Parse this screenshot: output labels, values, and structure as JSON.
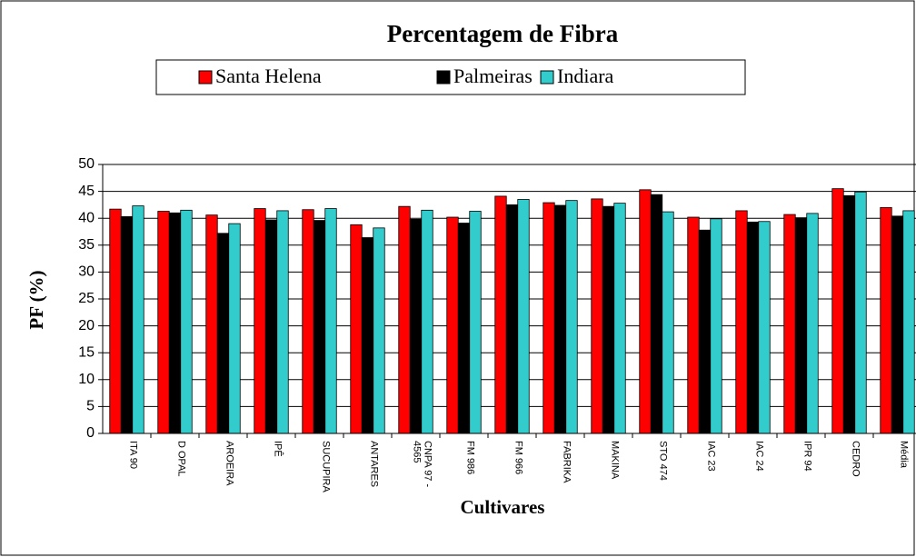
{
  "chart_data": {
    "type": "bar",
    "title": "Percentagem de Fibra",
    "y_label": "PF (%)",
    "x_label": "Cultivares",
    "categories": [
      "ITA 90",
      "D OPAL",
      "AROEIRA",
      "IPÊ",
      "SUCUPIRA",
      "ANTARES",
      "CNPA 97 - 4565",
      "FM 986",
      "FM 966",
      "FABRIKA",
      "MAKINA",
      "STO 474",
      "IAC 23",
      "IAC 24",
      "IPR 94",
      "CEDRO",
      "Média"
    ],
    "series": [
      {
        "name": "Santa Helena",
        "color": "#ff0000",
        "values": [
          41.7,
          41.3,
          40.6,
          41.8,
          41.6,
          38.8,
          42.2,
          40.2,
          44.1,
          42.9,
          43.6,
          45.3,
          40.2,
          41.4,
          40.7,
          45.5,
          42.0
        ]
      },
      {
        "name": "Palmeiras",
        "color": "#000000",
        "values": [
          40.3,
          41.0,
          37.2,
          39.7,
          39.6,
          36.4,
          39.8,
          39.1,
          42.5,
          42.4,
          42.2,
          44.4,
          37.8,
          39.3,
          40.1,
          44.2,
          40.4
        ]
      },
      {
        "name": "Indiara",
        "color": "#33cccc",
        "values": [
          42.3,
          41.5,
          39.0,
          41.4,
          41.8,
          38.2,
          41.5,
          41.3,
          43.5,
          43.3,
          42.8,
          41.2,
          39.9,
          39.4,
          40.9,
          44.9,
          41.4
        ]
      }
    ],
    "ylim": [
      0,
      50
    ],
    "yticks": [
      0,
      5,
      10,
      15,
      20,
      25,
      30,
      35,
      40,
      45,
      50
    ],
    "grid": true
  }
}
